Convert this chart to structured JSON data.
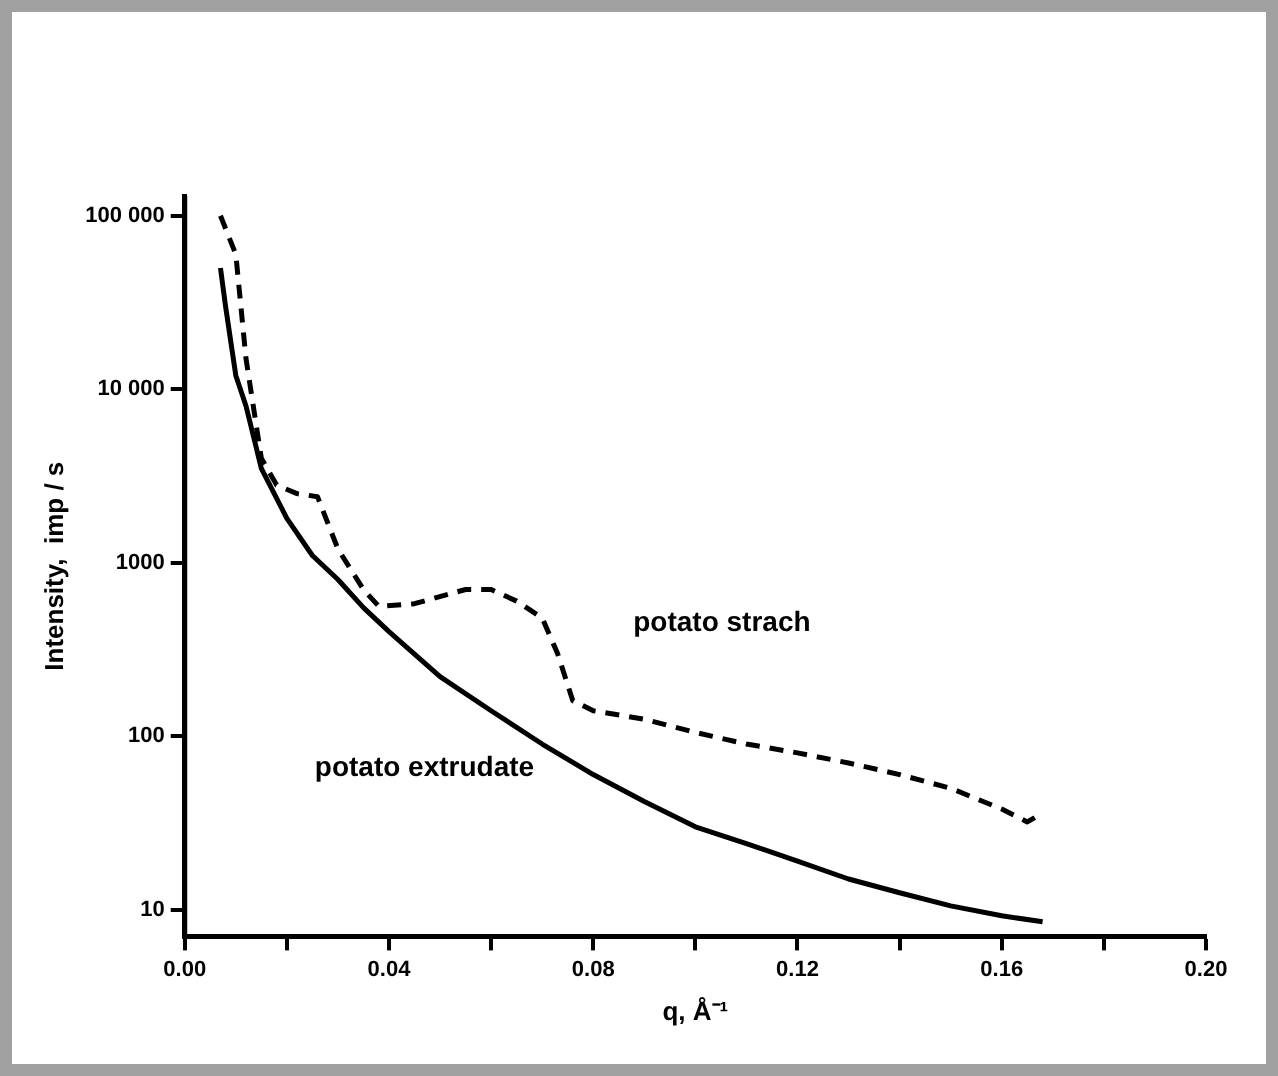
{
  "chart_data": {
    "type": "line",
    "xlabel": "q, Å⁻¹",
    "ylabel": "Intensity,  imp / s",
    "log": "y",
    "grid": false,
    "legend": false,
    "marker": "none",
    "xlim": [
      0,
      0.2
    ],
    "xticks": [
      {
        "value": 0,
        "label": "0.00"
      },
      {
        "value": 0.02,
        "label": null
      },
      {
        "value": 0.04,
        "label": "0.04"
      },
      {
        "value": 0.06,
        "label": null
      },
      {
        "value": 0.08,
        "label": "0.08"
      },
      {
        "value": 0.1,
        "label": null
      },
      {
        "value": 0.12,
        "label": "0.12"
      },
      {
        "value": 0.14,
        "label": null
      },
      {
        "value": 0.16,
        "label": "0.16"
      },
      {
        "value": 0.18,
        "label": null
      },
      {
        "value": 0.2,
        "label": "0.20"
      }
    ],
    "ylim": [
      7,
      130000
    ],
    "yticks": [
      {
        "value": 10,
        "label": "10"
      },
      {
        "value": 100,
        "label": "100"
      },
      {
        "value": 1000,
        "label": "1000"
      },
      {
        "value": 10000,
        "label": "10 000"
      },
      {
        "value": 100000,
        "label": "100 000"
      }
    ],
    "series": [
      {
        "name": "potato strach",
        "color": "#000000",
        "line_style": "dashed",
        "x": [
          0.007,
          0.01,
          0.012,
          0.015,
          0.018,
          0.022,
          0.026,
          0.03,
          0.035,
          0.038,
          0.045,
          0.055,
          0.06,
          0.065,
          0.07,
          0.073,
          0.076,
          0.08,
          0.09,
          0.1,
          0.11,
          0.12,
          0.13,
          0.14,
          0.15,
          0.16,
          0.165,
          0.168
        ],
        "values": [
          100000,
          60000,
          15000,
          4000,
          2800,
          2500,
          2400,
          1200,
          700,
          560,
          580,
          700,
          700,
          600,
          480,
          300,
          160,
          140,
          125,
          105,
          90,
          80,
          70,
          60,
          50,
          38,
          32,
          36
        ]
      },
      {
        "name": "potato extrudate",
        "color": "#000000",
        "line_style": "solid",
        "x": [
          0.007,
          0.008,
          0.01,
          0.012,
          0.015,
          0.02,
          0.025,
          0.03,
          0.035,
          0.04,
          0.05,
          0.06,
          0.07,
          0.08,
          0.09,
          0.1,
          0.11,
          0.12,
          0.13,
          0.14,
          0.15,
          0.16,
          0.168
        ],
        "values": [
          50000,
          30000,
          12000,
          8000,
          3500,
          1800,
          1100,
          800,
          550,
          400,
          220,
          140,
          90,
          60,
          42,
          30,
          24,
          19,
          15,
          12.5,
          10.5,
          9.2,
          8.5
        ]
      }
    ]
  }
}
